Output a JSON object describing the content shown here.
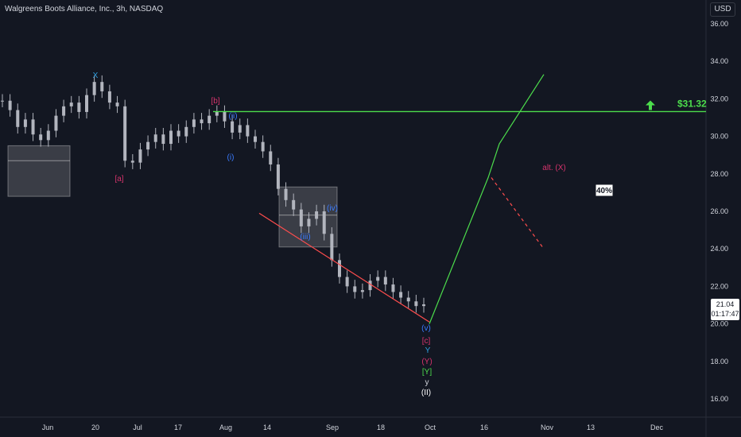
{
  "header": {
    "title": "Walgreens Boots Alliance, Inc., 3h, NASDAQ"
  },
  "price_axis": {
    "unit": "USD",
    "last_price": "21.04",
    "countdown": "01:17:47"
  },
  "chart_data": {
    "type": "line",
    "title": "Walgreens Boots Alliance, Inc., 3h, NASDAQ",
    "xlabel": "",
    "ylabel": "",
    "ylim": [
      15.0,
      36.8
    ],
    "x_ticks": [
      "Jun",
      "20",
      "Jul",
      "17",
      "Aug",
      "14",
      "Sep",
      "18",
      "Oct",
      "16",
      "Nov",
      "13",
      "Dec"
    ],
    "y_ticks": [
      16,
      18,
      20,
      22,
      24,
      26,
      28,
      30,
      32,
      34,
      36
    ],
    "y_tick_labels": [
      "16.00",
      "18.00",
      "20.00",
      "22.00",
      "24.00",
      "26.00",
      "28.00",
      "30.00",
      "32.00",
      "34.00",
      "36.00"
    ],
    "series": [
      {
        "values": [
          31.9,
          31.4,
          30.5,
          30.9,
          30.1,
          29.8,
          30.3,
          31.1,
          31.6,
          31.8,
          31.3,
          32.2,
          32.9,
          32.4,
          31.8,
          31.6,
          28.7,
          28.6,
          29.3,
          29.7,
          30.1,
          29.6,
          30.3,
          30.0,
          30.5,
          30.9,
          30.7,
          31.1,
          31.3,
          30.8,
          30.2,
          30.6,
          30.0,
          29.7,
          29.2,
          28.5,
          27.2,
          26.6,
          26.1,
          25.2,
          25.6,
          26.0,
          24.8,
          23.4,
          22.5,
          22.0,
          21.7,
          21.8,
          22.3,
          22.5,
          22.1,
          21.7,
          21.4,
          21.2,
          20.95,
          21.04
        ]
      }
    ],
    "horizontal_line": {
      "value": 31.32,
      "label": "$31.32",
      "color": "#4cdd4c"
    },
    "projection": {
      "green_path": [
        [
          31.0,
          20.0
        ],
        [
          34.7,
          27.8
        ],
        [
          35.4,
          29.6
        ],
        [
          38.2,
          33.3
        ]
      ],
      "red_dashed": [
        [
          34.9,
          27.8
        ],
        [
          38.2,
          24.0
        ]
      ],
      "red_solid": [
        [
          20.3,
          25.9
        ],
        [
          31.0,
          20.1
        ]
      ]
    },
    "wave_labels": [
      {
        "text": "X",
        "color": "#2f9fe0"
      },
      {
        "text": "[b]",
        "color": "#d6336c"
      },
      {
        "text": "[a]",
        "color": "#d6336c"
      },
      {
        "text": "(i)",
        "color": "#3a7bff"
      },
      {
        "text": "(ii)",
        "color": "#3a7bff"
      },
      {
        "text": "(iii)",
        "color": "#3a7bff"
      },
      {
        "text": "(iv)",
        "color": "#3a7bff"
      },
      {
        "text": "(v)",
        "color": "#3a7bff"
      },
      {
        "text": "[c]",
        "color": "#d6336c"
      },
      {
        "text": "Y",
        "color": "#2f9fe0"
      },
      {
        "text": "(Y)",
        "color": "#d6336c"
      },
      {
        "text": "[Y]",
        "color": "#4cdd4c"
      },
      {
        "text": "y",
        "color": "#d1d4dc"
      },
      {
        "text": "(II)",
        "color": "#ffffff"
      },
      {
        "text": "alt. (X)",
        "color": "#d6336c"
      }
    ],
    "callout": {
      "text": "40%"
    },
    "arrow_up": {
      "color": "#4cdd4c"
    },
    "grid": false
  },
  "colors": {
    "background": "#131722",
    "axis_text": "#d1d4dc",
    "green": "#4cdd4c",
    "red": "#ff4d4d",
    "candle": "#b2b5be"
  }
}
